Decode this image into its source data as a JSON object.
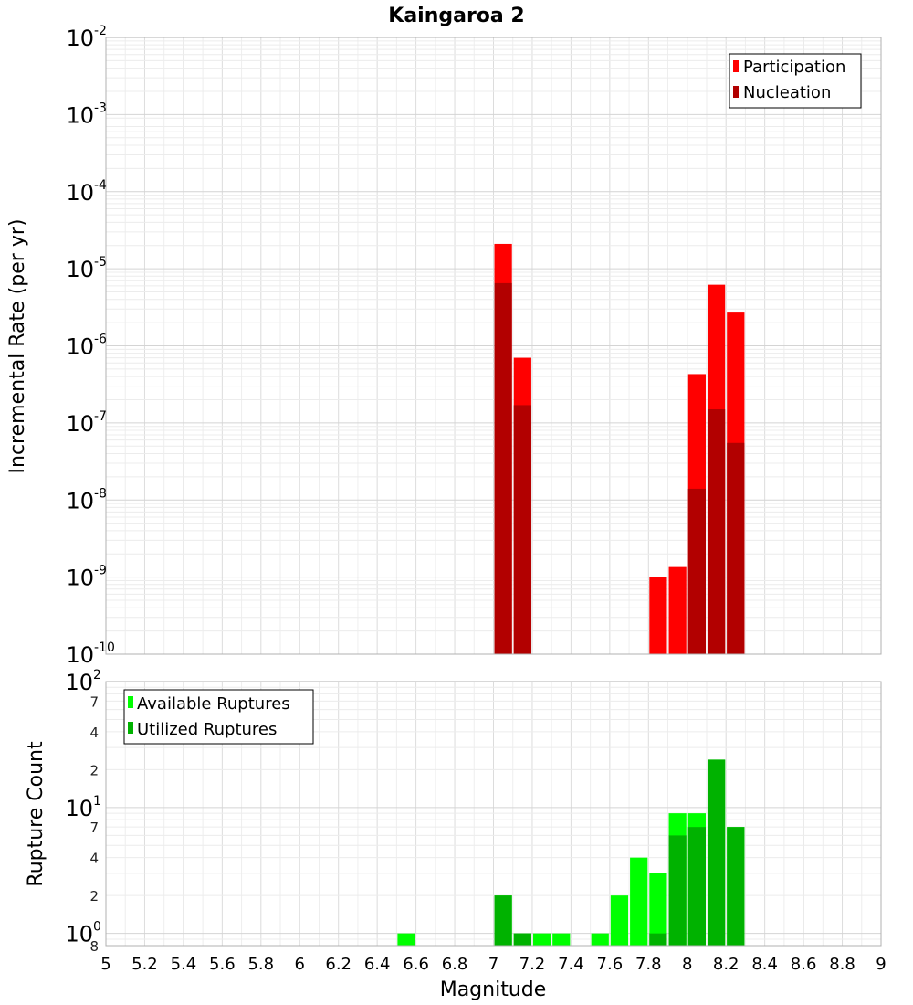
{
  "chart_data": [
    {
      "type": "bar",
      "title": "Kaingaroa 2",
      "xlabel": "",
      "ylabel": "Incremental Rate (per yr)",
      "xlim": [
        5,
        9
      ],
      "ylim": [
        1e-10,
        0.01
      ],
      "yscale": "log",
      "grid": true,
      "legend_placement": "top-right",
      "bin_width": 0.1,
      "series": [
        {
          "name": "Participation",
          "color": "#ff0000",
          "x": [
            7.05,
            7.15,
            7.85,
            7.95,
            8.05,
            8.15,
            8.25
          ],
          "values": [
            2.1e-05,
            7e-07,
            1e-09,
            1.35e-09,
            4.3e-07,
            6.2e-06,
            2.7e-06
          ]
        },
        {
          "name": "Nucleation",
          "color": "#b20000",
          "x": [
            7.05,
            7.15,
            8.05,
            8.15,
            8.25
          ],
          "values": [
            6.5e-06,
            1.7e-07,
            1.4e-08,
            1.5e-07,
            5.5e-08
          ]
        }
      ]
    },
    {
      "type": "bar",
      "title": "",
      "xlabel": "Magnitude",
      "ylabel": "Rupture Count",
      "xlim": [
        5,
        9
      ],
      "ylim": [
        0.8,
        100
      ],
      "yscale": "log",
      "grid": true,
      "legend_placement": "top-left",
      "bin_width": 0.1,
      "series": [
        {
          "name": "Available Ruptures",
          "color": "#00ff00",
          "x": [
            6.55,
            7.05,
            7.15,
            7.25,
            7.35,
            7.55,
            7.65,
            7.75,
            7.85,
            7.95,
            8.05,
            8.15,
            8.25
          ],
          "values": [
            1,
            2,
            1,
            1,
            1,
            1,
            2,
            4,
            3,
            9,
            9,
            24,
            7
          ]
        },
        {
          "name": "Utilized Ruptures",
          "color": "#00b200",
          "x": [
            7.05,
            7.15,
            7.85,
            7.95,
            8.05,
            8.15,
            8.25
          ],
          "values": [
            2,
            1,
            1,
            6,
            7,
            24,
            7
          ]
        }
      ]
    }
  ],
  "top_ticks": [
    {
      "base": "10",
      "exp": "-10"
    },
    {
      "base": "10",
      "exp": "-9"
    },
    {
      "base": "10",
      "exp": "-8"
    },
    {
      "base": "10",
      "exp": "-7"
    },
    {
      "base": "10",
      "exp": "-6"
    },
    {
      "base": "10",
      "exp": "-5"
    },
    {
      "base": "10",
      "exp": "-4"
    },
    {
      "base": "10",
      "exp": "-3"
    },
    {
      "base": "10",
      "exp": "-2"
    }
  ],
  "bottom_ticks_major": [
    {
      "base": "10",
      "exp": "0"
    },
    {
      "base": "10",
      "exp": "1"
    },
    {
      "base": "10",
      "exp": "2"
    }
  ],
  "bottom_ticks_minor": [
    "8",
    "2",
    "4",
    "7",
    "2",
    "4",
    "7"
  ],
  "x_ticks": [
    "5",
    "5.2",
    "5.4",
    "5.6",
    "5.8",
    "6",
    "6.2",
    "6.4",
    "6.6",
    "6.8",
    "7",
    "7.2",
    "7.4",
    "7.6",
    "7.8",
    "8",
    "8.2",
    "8.4",
    "8.6",
    "8.8",
    "9"
  ]
}
